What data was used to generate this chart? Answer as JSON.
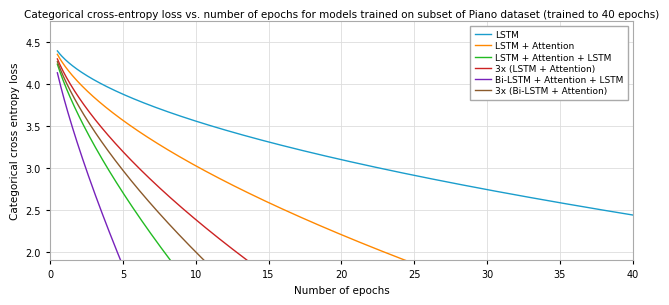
{
  "title": "Categorical cross-entropy loss vs. number of epochs for models trained on subset of Piano dataset (trained to 40 epochs)",
  "xlabel": "Number of epochs",
  "ylabel": "Categorical cross entropy loss",
  "xlim": [
    0,
    40
  ],
  "ylim": [
    1.9,
    4.75
  ],
  "yticks": [
    2.0,
    2.5,
    3.0,
    3.5,
    4.0,
    4.5
  ],
  "xticks": [
    0,
    5,
    10,
    15,
    20,
    25,
    30,
    35,
    40
  ],
  "series": [
    {
      "label": "LSTM",
      "color": "#1a9dcc",
      "a": 4.62,
      "b": 0.32,
      "power": 0.52
    },
    {
      "label": "LSTM + Attention",
      "color": "#ff8800",
      "a": 4.62,
      "b": 0.4,
      "power": 0.6
    },
    {
      "label": "LSTM + Attention + LSTM",
      "color": "#22bb22",
      "a": 4.62,
      "b": 0.62,
      "power": 0.7
    },
    {
      "label": "3x (LSTM + Attention)",
      "color": "#cc2222",
      "a": 4.62,
      "b": 0.5,
      "power": 0.65
    },
    {
      "label": "Bi-LSTM + Attention + LSTM",
      "color": "#7722bb",
      "a": 4.62,
      "b": 0.82,
      "power": 0.76
    },
    {
      "label": "3x (Bi-LSTM + Attention)",
      "color": "#8B5A2B",
      "a": 4.62,
      "b": 0.56,
      "power": 0.67
    }
  ],
  "background_color": "#ffffff",
  "grid_color": "#dddddd",
  "title_fontsize": 7.5,
  "label_fontsize": 7.5,
  "tick_fontsize": 7,
  "legend_fontsize": 6.5
}
